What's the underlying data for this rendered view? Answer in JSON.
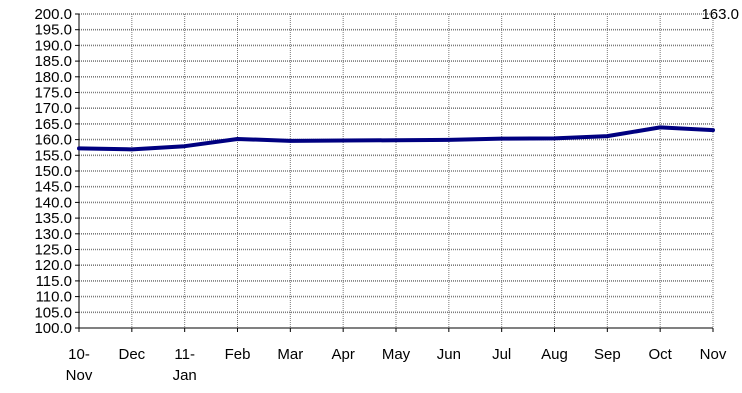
{
  "chart_data": {
    "type": "line",
    "categories": [
      "10-Nov",
      "Dec",
      "11-Jan",
      "Feb",
      "Mar",
      "Apr",
      "May",
      "Jun",
      "Jul",
      "Aug",
      "Sep",
      "Oct",
      "Nov"
    ],
    "category_lines": [
      [
        "10-",
        "Nov"
      ],
      [
        "Dec"
      ],
      [
        "11-",
        "Jan"
      ],
      [
        "Feb"
      ],
      [
        "Mar"
      ],
      [
        "Apr"
      ],
      [
        "May"
      ],
      [
        "Jun"
      ],
      [
        "Jul"
      ],
      [
        "Aug"
      ],
      [
        "Sep"
      ],
      [
        "Oct"
      ],
      [
        "Nov"
      ]
    ],
    "series": [
      {
        "values": [
          157.2,
          156.9,
          157.9,
          160.2,
          159.6,
          159.7,
          159.8,
          159.9,
          160.3,
          160.4,
          161.1,
          163.9,
          163.0
        ],
        "color": "#000080"
      }
    ],
    "ylim": [
      100,
      200
    ],
    "yticks": [
      "100.0",
      "105.0",
      "110.0",
      "115.0",
      "120.0",
      "125.0",
      "130.0",
      "135.0",
      "140.0",
      "145.0",
      "150.0",
      "155.0",
      "160.0",
      "165.0",
      "170.0",
      "175.0",
      "180.0",
      "185.0",
      "190.0",
      "195.0",
      "200.0"
    ],
    "end_label": "163.0",
    "title": "",
    "xlabel": "",
    "ylabel": "",
    "grid": true,
    "legend": "none"
  }
}
